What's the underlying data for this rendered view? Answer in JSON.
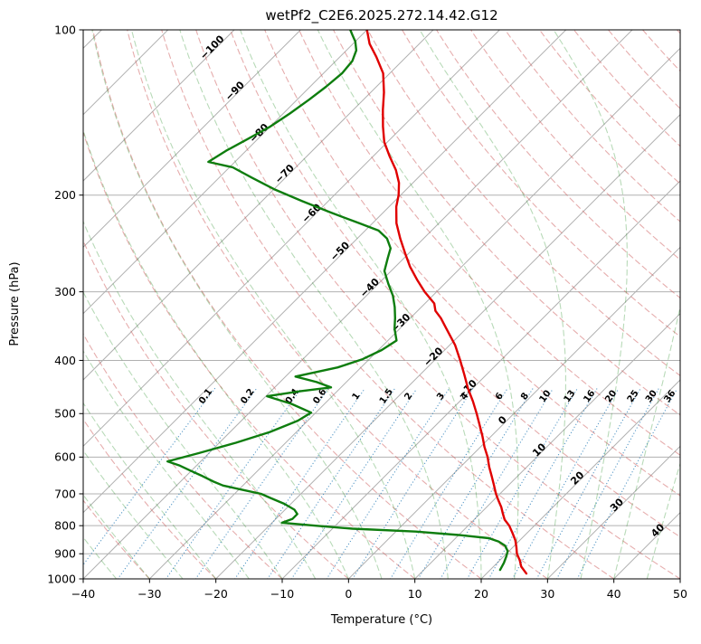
{
  "chart_data": {
    "type": "line",
    "subtype": "skewt-logp-sounding",
    "title": "wetPf2_C2E6.2025.272.14.42.G12",
    "xlabel": "Temperature (°C)",
    "ylabel": "Pressure (hPa)",
    "x_range": [
      -40,
      50
    ],
    "pressure_range": [
      100,
      1000
    ],
    "pressure_ticks": [
      100,
      200,
      300,
      400,
      500,
      600,
      700,
      800,
      900,
      1000
    ],
    "temperature_ticks": [
      -40,
      -30,
      -20,
      -10,
      0,
      10,
      20,
      30,
      40,
      50
    ],
    "grid": true,
    "isotherm_step": 10,
    "isotherm_range": [
      -120,
      50
    ],
    "isotherm_labels": [
      -100,
      -90,
      -80,
      -70,
      -60,
      -50,
      -40,
      -30,
      -20,
      -10,
      0,
      10,
      20,
      30,
      40
    ],
    "mixing_ratio_lines_g_per_kg": [
      0.1,
      0.2,
      0.4,
      0.6,
      1,
      1.5,
      2,
      3,
      4,
      6,
      8,
      10,
      13,
      16,
      20,
      25,
      30,
      36
    ],
    "mixing_label_pressure_hpa": 468,
    "dry_adiabats_theta_c": {
      "start": -40,
      "end": 200,
      "step": 10
    },
    "moist_adiabats_start_temp_c": {
      "start": -40,
      "end": 50,
      "step": 5
    },
    "colors": {
      "temperature": "#e00000",
      "dewpoint": "#0e7d0e",
      "grid": "#b0b0b0",
      "dry_adiabat": "rgba(205,92,92,0.5)",
      "moist_adiabat": "rgba(34,139,34,0.32)",
      "mixing_ratio": "rgba(31,119,180,0.75)",
      "mixing_label": "#1f77b4",
      "cold_label": "#1f77b4",
      "zero_label": "#7a7a7a",
      "warm_label": "#d62728",
      "frame": "#000000"
    },
    "series": [
      {
        "name": "temperature",
        "points": [
          [
            978,
            26
          ],
          [
            950,
            24.2
          ],
          [
            925,
            23
          ],
          [
            900,
            21.6
          ],
          [
            875,
            20.5
          ],
          [
            850,
            19.3
          ],
          [
            825,
            17.8
          ],
          [
            800,
            16.2
          ],
          [
            780,
            14.6
          ],
          [
            760,
            13.4
          ],
          [
            740,
            12.2
          ],
          [
            720,
            10.8
          ],
          [
            700,
            9.4
          ],
          [
            675,
            7.8
          ],
          [
            650,
            6.1
          ],
          [
            625,
            4.3
          ],
          [
            600,
            2.6
          ],
          [
            575,
            0.6
          ],
          [
            550,
            -1.3
          ],
          [
            525,
            -3.4
          ],
          [
            500,
            -5.6
          ],
          [
            475,
            -8
          ],
          [
            450,
            -10.7
          ],
          [
            425,
            -13.3
          ],
          [
            400,
            -16.1
          ],
          [
            375,
            -19.2
          ],
          [
            350,
            -23
          ],
          [
            335,
            -25.4
          ],
          [
            325,
            -27.3
          ],
          [
            315,
            -28.6
          ],
          [
            300,
            -31.8
          ],
          [
            285,
            -34.8
          ],
          [
            270,
            -37.8
          ],
          [
            255,
            -40.6
          ],
          [
            240,
            -43.5
          ],
          [
            225,
            -46.4
          ],
          [
            210,
            -48.9
          ],
          [
            200,
            -50.3
          ],
          [
            190,
            -52.1
          ],
          [
            180,
            -54.5
          ],
          [
            170,
            -57.5
          ],
          [
            160,
            -60.5
          ],
          [
            150,
            -63
          ],
          [
            140,
            -65.5
          ],
          [
            130,
            -68
          ],
          [
            120,
            -71
          ],
          [
            112,
            -74.5
          ],
          [
            106,
            -77.5
          ],
          [
            100,
            -80
          ]
        ]
      },
      {
        "name": "dewpoint",
        "points": [
          [
            963,
            21.5
          ],
          [
            935,
            21
          ],
          [
            910,
            20.4
          ],
          [
            890,
            19.8
          ],
          [
            870,
            18.6
          ],
          [
            855,
            17
          ],
          [
            843,
            15
          ],
          [
            832,
            10
          ],
          [
            820,
            3
          ],
          [
            810,
            -7
          ],
          [
            800,
            -13
          ],
          [
            790,
            -18.5
          ],
          [
            778,
            -17.5
          ],
          [
            762,
            -17.5
          ],
          [
            748,
            -18.6
          ],
          [
            730,
            -21
          ],
          [
            712,
            -24
          ],
          [
            700,
            -26
          ],
          [
            688,
            -29.5
          ],
          [
            676,
            -33
          ],
          [
            665,
            -35
          ],
          [
            650,
            -37.5
          ],
          [
            636,
            -40
          ],
          [
            622,
            -42.5
          ],
          [
            611,
            -45
          ],
          [
            590,
            -41.5
          ],
          [
            565,
            -37.5
          ],
          [
            540,
            -34
          ],
          [
            515,
            -31.5
          ],
          [
            498,
            -30.7
          ],
          [
            480,
            -35
          ],
          [
            465,
            -39.8
          ],
          [
            455,
            -35.5
          ],
          [
            448,
            -31.5
          ],
          [
            438,
            -34.5
          ],
          [
            428,
            -38.5
          ],
          [
            412,
            -33.5
          ],
          [
            398,
            -31
          ],
          [
            383,
            -29.5
          ],
          [
            368,
            -28.7
          ],
          [
            350,
            -30.8
          ],
          [
            335,
            -32.3
          ],
          [
            320,
            -34
          ],
          [
            305,
            -36
          ],
          [
            290,
            -38.5
          ],
          [
            275,
            -41
          ],
          [
            260,
            -42.5
          ],
          [
            250,
            -43.5
          ],
          [
            240,
            -45.5
          ],
          [
            232,
            -48
          ],
          [
            225,
            -52
          ],
          [
            215,
            -58
          ],
          [
            205,
            -64
          ],
          [
            195,
            -70
          ],
          [
            186,
            -75
          ],
          [
            178,
            -79.5
          ],
          [
            174,
            -84
          ],
          [
            166,
            -83
          ],
          [
            158,
            -81.5
          ],
          [
            150,
            -80
          ],
          [
            142,
            -79
          ],
          [
            134,
            -78.2
          ],
          [
            127,
            -77.6
          ],
          [
            120,
            -77.2
          ],
          [
            114,
            -77.5
          ],
          [
            109,
            -78.5
          ],
          [
            105,
            -80
          ],
          [
            102,
            -81.5
          ],
          [
            100,
            -82.5
          ]
        ]
      }
    ]
  }
}
